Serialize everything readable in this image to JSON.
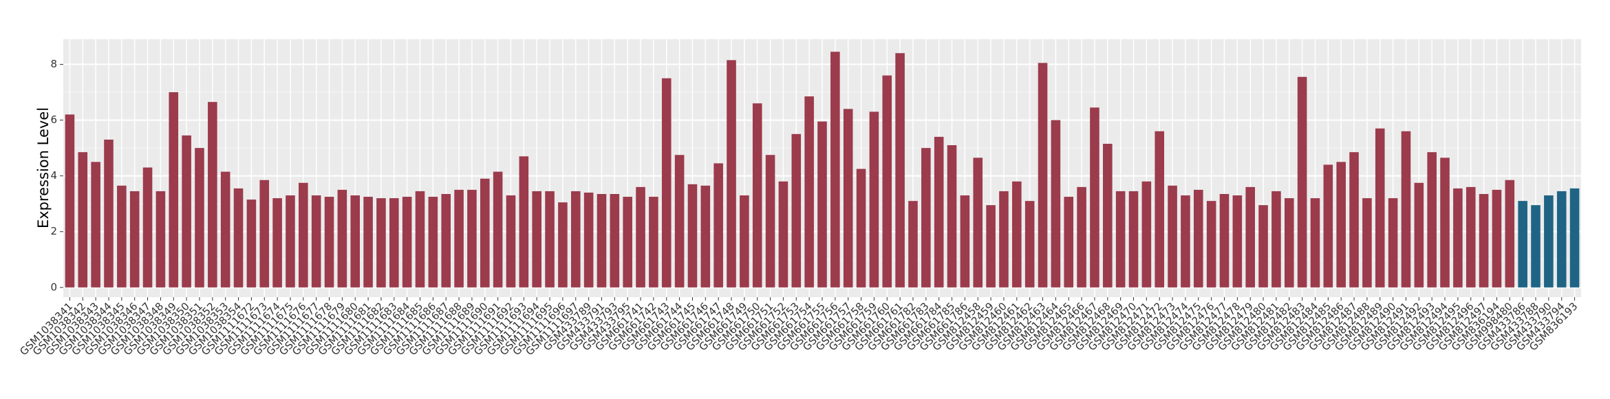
{
  "chart_data": {
    "type": "bar",
    "y_label": "Expression Level",
    "categories": [
      "GSM1038341",
      "GSM1038342",
      "GSM1038343",
      "GSM1038344",
      "GSM1038345",
      "GSM1038346",
      "GSM1038347",
      "GSM1038348",
      "GSM1038349",
      "GSM1038350",
      "GSM1038351",
      "GSM1038352",
      "GSM1038353",
      "GSM1038354",
      "GSM1111672",
      "GSM1111673",
      "GSM1111674",
      "GSM1111675",
      "GSM1111676",
      "GSM1111677",
      "GSM1111678",
      "GSM1111679",
      "GSM1111680",
      "GSM1111681",
      "GSM1111682",
      "GSM1111683",
      "GSM1111684",
      "GSM1111685",
      "GSM1111686",
      "GSM1111687",
      "GSM1111688",
      "GSM1111689",
      "GSM1111690",
      "GSM1111691",
      "GSM1111692",
      "GSM1111693",
      "GSM1111694",
      "GSM1111695",
      "GSM1111696",
      "GSM1111697",
      "GSM433789",
      "GSM433791",
      "GSM433793",
      "GSM433795",
      "GSM661741",
      "GSM661742",
      "GSM661743",
      "GSM661744",
      "GSM661745",
      "GSM661746",
      "GSM661747",
      "GSM661748",
      "GSM661749",
      "GSM661750",
      "GSM661751",
      "GSM661752",
      "GSM661753",
      "GSM661754",
      "GSM661755",
      "GSM661756",
      "GSM661757",
      "GSM661758",
      "GSM661759",
      "GSM661760",
      "GSM661761",
      "GSM661782",
      "GSM661783",
      "GSM661784",
      "GSM661785",
      "GSM661786",
      "GSM812458",
      "GSM812459",
      "GSM812460",
      "GSM812461",
      "GSM812462",
      "GSM812463",
      "GSM812464",
      "GSM812465",
      "GSM812466",
      "GSM812467",
      "GSM812468",
      "GSM812469",
      "GSM812470",
      "GSM812471",
      "GSM812472",
      "GSM812473",
      "GSM812474",
      "GSM812475",
      "GSM812476",
      "GSM812477",
      "GSM812478",
      "GSM812479",
      "GSM812480",
      "GSM812481",
      "GSM812482",
      "GSM812483",
      "GSM812484",
      "GSM812485",
      "GSM812486",
      "GSM812487",
      "GSM812488",
      "GSM812489",
      "GSM812490",
      "GSM812491",
      "GSM812492",
      "GSM812493",
      "GSM812494",
      "GSM812495",
      "GSM812496",
      "GSM812497",
      "GSM836194",
      "GSM998480",
      "GSM433786",
      "GSM433788",
      "GSM433790",
      "GSM433794",
      "GSM836193"
    ],
    "values": [
      6.2,
      4.85,
      4.5,
      5.3,
      3.65,
      3.45,
      4.3,
      3.45,
      7.0,
      5.45,
      5.0,
      6.65,
      4.15,
      3.55,
      3.15,
      3.85,
      3.2,
      3.3,
      3.75,
      3.3,
      3.25,
      3.5,
      3.3,
      3.25,
      3.2,
      3.2,
      3.25,
      3.45,
      3.25,
      3.35,
      3.5,
      3.5,
      3.9,
      4.15,
      3.3,
      4.7,
      3.45,
      3.45,
      3.05,
      3.45,
      3.4,
      3.35,
      3.35,
      3.25,
      3.6,
      3.25,
      7.5,
      4.75,
      3.7,
      3.65,
      4.45,
      8.15,
      3.3,
      6.6,
      4.75,
      3.8,
      5.5,
      6.85,
      5.95,
      8.45,
      6.4,
      4.25,
      6.3,
      7.6,
      8.4,
      3.1,
      5.0,
      5.4,
      5.1,
      3.3,
      4.65,
      2.95,
      3.45,
      3.8,
      3.1,
      8.05,
      6.0,
      3.25,
      3.6,
      6.45,
      5.15,
      3.45,
      3.45,
      3.8,
      5.6,
      3.65,
      3.3,
      3.5,
      3.1,
      3.35,
      3.3,
      3.6,
      2.95,
      3.45,
      3.2,
      7.55,
      3.2,
      4.4,
      4.5,
      4.85,
      3.2,
      5.7,
      3.2,
      5.6,
      3.75,
      4.85,
      4.65,
      3.55,
      3.6,
      3.35,
      3.5,
      3.85,
      3.1,
      2.95,
      3.3,
      3.45,
      3.55
    ],
    "colors": [
      "#9b3b4c",
      "#9b3b4c",
      "#9b3b4c",
      "#9b3b4c",
      "#9b3b4c",
      "#9b3b4c",
      "#9b3b4c",
      "#9b3b4c",
      "#9b3b4c",
      "#9b3b4c",
      "#9b3b4c",
      "#9b3b4c",
      "#9b3b4c",
      "#9b3b4c",
      "#9b3b4c",
      "#9b3b4c",
      "#9b3b4c",
      "#9b3b4c",
      "#9b3b4c",
      "#9b3b4c",
      "#9b3b4c",
      "#9b3b4c",
      "#9b3b4c",
      "#9b3b4c",
      "#9b3b4c",
      "#9b3b4c",
      "#9b3b4c",
      "#9b3b4c",
      "#9b3b4c",
      "#9b3b4c",
      "#9b3b4c",
      "#9b3b4c",
      "#9b3b4c",
      "#9b3b4c",
      "#9b3b4c",
      "#9b3b4c",
      "#9b3b4c",
      "#9b3b4c",
      "#9b3b4c",
      "#9b3b4c",
      "#9b3b4c",
      "#9b3b4c",
      "#9b3b4c",
      "#9b3b4c",
      "#9b3b4c",
      "#9b3b4c",
      "#9b3b4c",
      "#9b3b4c",
      "#9b3b4c",
      "#9b3b4c",
      "#9b3b4c",
      "#9b3b4c",
      "#9b3b4c",
      "#9b3b4c",
      "#9b3b4c",
      "#9b3b4c",
      "#9b3b4c",
      "#9b3b4c",
      "#9b3b4c",
      "#9b3b4c",
      "#9b3b4c",
      "#9b3b4c",
      "#9b3b4c",
      "#9b3b4c",
      "#9b3b4c",
      "#9b3b4c",
      "#9b3b4c",
      "#9b3b4c",
      "#9b3b4c",
      "#9b3b4c",
      "#9b3b4c",
      "#9b3b4c",
      "#9b3b4c",
      "#9b3b4c",
      "#9b3b4c",
      "#9b3b4c",
      "#9b3b4c",
      "#9b3b4c",
      "#9b3b4c",
      "#9b3b4c",
      "#9b3b4c",
      "#9b3b4c",
      "#9b3b4c",
      "#9b3b4c",
      "#9b3b4c",
      "#9b3b4c",
      "#9b3b4c",
      "#9b3b4c",
      "#9b3b4c",
      "#9b3b4c",
      "#9b3b4c",
      "#9b3b4c",
      "#9b3b4c",
      "#9b3b4c",
      "#9b3b4c",
      "#9b3b4c",
      "#9b3b4c",
      "#9b3b4c",
      "#9b3b4c",
      "#9b3b4c",
      "#9b3b4c",
      "#9b3b4c",
      "#9b3b4c",
      "#9b3b4c",
      "#9b3b4c",
      "#9b3b4c",
      "#9b3b4c",
      "#9b3b4c",
      "#9b3b4c",
      "#9b3b4c",
      "#9b3b4c",
      "#9b3b4c",
      "#1f6485",
      "#1f6485",
      "#1f6485",
      "#1f6485",
      "#1f6485"
    ],
    "ylim": [
      -0.35,
      8.9
    ],
    "yticks": [
      0,
      2,
      4,
      6,
      8
    ],
    "grid": true
  }
}
